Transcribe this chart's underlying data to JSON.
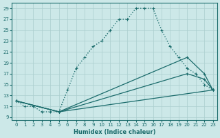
{
  "xlabel": "Humidex (Indice chaleur)",
  "background_color": "#cce8e8",
  "grid_color": "#aacece",
  "line_color": "#1a6b6b",
  "xlim": [
    -0.5,
    23.5
  ],
  "ylim": [
    8.5,
    30
  ],
  "xticks": [
    0,
    1,
    2,
    3,
    4,
    5,
    6,
    7,
    8,
    9,
    10,
    11,
    12,
    13,
    14,
    15,
    16,
    17,
    18,
    19,
    20,
    21,
    22,
    23
  ],
  "yticks": [
    9,
    11,
    13,
    15,
    17,
    19,
    21,
    23,
    25,
    27,
    29
  ],
  "series": [
    {
      "x": [
        0,
        1,
        2,
        3,
        4,
        5,
        6,
        7,
        8,
        9,
        10,
        11,
        12,
        13,
        14,
        15,
        16,
        17,
        18,
        19,
        20,
        21,
        22,
        23
      ],
      "y": [
        12,
        11,
        11,
        10,
        10,
        10,
        14,
        18,
        20,
        22,
        23,
        25,
        27,
        27,
        29,
        29,
        29,
        25,
        22,
        20,
        18,
        17,
        15,
        14
      ],
      "style": "dotted",
      "marker": "+",
      "markersize": 3.5,
      "linewidth": 1.0
    },
    {
      "x": [
        0,
        5,
        20,
        22,
        23
      ],
      "y": [
        12,
        10,
        20,
        17,
        14
      ],
      "style": "-",
      "marker": "+",
      "markersize": 3.5,
      "linewidth": 0.9
    },
    {
      "x": [
        0,
        5,
        20,
        22,
        23
      ],
      "y": [
        12,
        10,
        17,
        16,
        14
      ],
      "style": "-",
      "marker": "+",
      "markersize": 3.5,
      "linewidth": 0.9
    },
    {
      "x": [
        0,
        5,
        23
      ],
      "y": [
        12,
        10,
        14
      ],
      "style": "-",
      "marker": "+",
      "markersize": 3.5,
      "linewidth": 0.9
    }
  ]
}
